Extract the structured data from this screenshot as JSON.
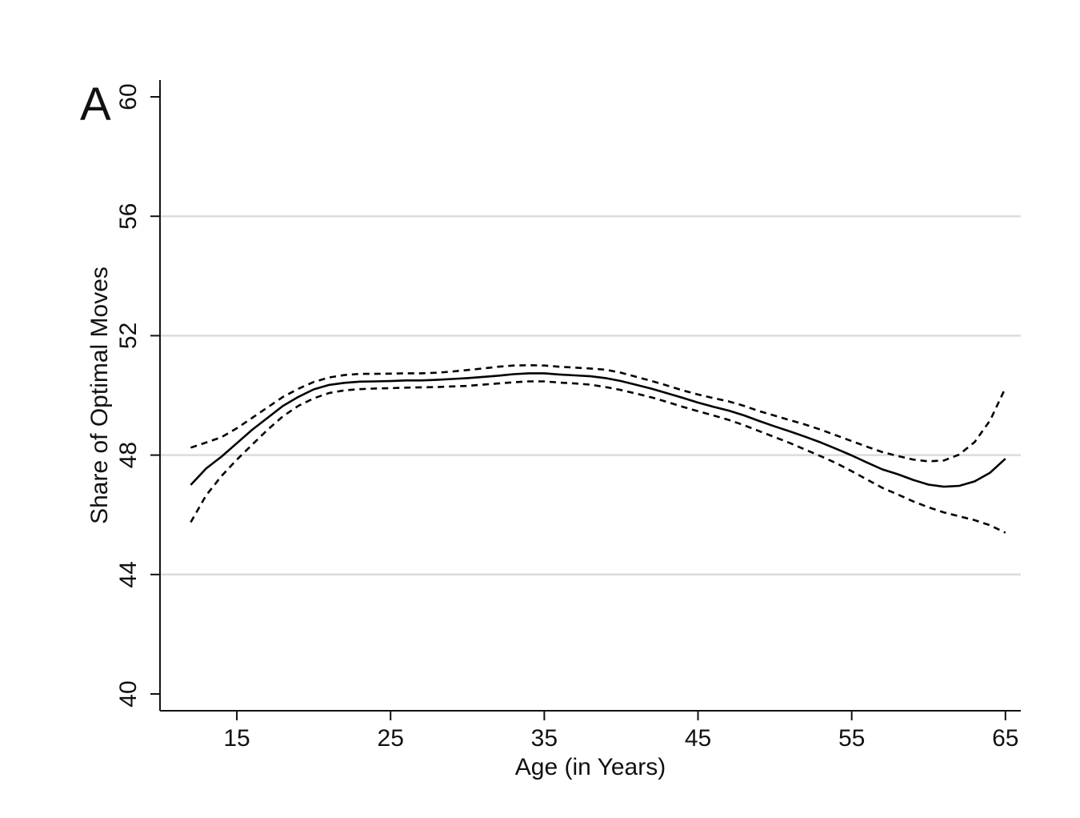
{
  "chart_data": {
    "type": "line",
    "panel_label": "A",
    "xlabel": "Age (in Years)",
    "ylabel": "Share of Optimal Moves",
    "xlim": [
      10,
      66
    ],
    "ylim": [
      40,
      60.5
    ],
    "xticks": [
      15,
      25,
      35,
      45,
      55,
      65
    ],
    "yticks": [
      40,
      44,
      48,
      52,
      56,
      60
    ],
    "grid": "horizontal",
    "x": [
      12,
      13,
      14,
      15,
      16,
      17,
      18,
      19,
      20,
      21,
      22,
      23,
      24,
      25,
      26,
      27,
      28,
      29,
      30,
      31,
      32,
      33,
      34,
      35,
      36,
      37,
      38,
      39,
      40,
      41,
      42,
      43,
      44,
      45,
      46,
      47,
      48,
      49,
      50,
      51,
      52,
      53,
      54,
      55,
      56,
      57,
      58,
      59,
      60,
      61,
      62,
      63,
      64,
      65
    ],
    "series": [
      {
        "style": "solid",
        "values": [
          47.0,
          47.55,
          47.95,
          48.4,
          48.85,
          49.25,
          49.65,
          49.95,
          50.2,
          50.35,
          50.42,
          50.46,
          50.47,
          50.48,
          50.5,
          50.5,
          50.52,
          50.55,
          50.58,
          50.62,
          50.66,
          50.71,
          50.74,
          50.74,
          50.7,
          50.67,
          50.64,
          50.58,
          50.48,
          50.35,
          50.22,
          50.07,
          49.92,
          49.76,
          49.62,
          49.49,
          49.33,
          49.14,
          48.96,
          48.79,
          48.61,
          48.42,
          48.21,
          47.99,
          47.75,
          47.52,
          47.36,
          47.17,
          47.01,
          46.94,
          46.97,
          47.12,
          47.41,
          47.88
        ]
      },
      {
        "style": "dashed",
        "values": [
          48.25,
          48.42,
          48.6,
          48.9,
          49.25,
          49.6,
          49.95,
          50.22,
          50.45,
          50.6,
          50.68,
          50.72,
          50.72,
          50.73,
          50.74,
          50.74,
          50.76,
          50.8,
          50.85,
          50.9,
          50.96,
          51.0,
          51.01,
          51.0,
          50.96,
          50.93,
          50.9,
          50.86,
          50.76,
          50.62,
          50.48,
          50.33,
          50.17,
          50.03,
          49.91,
          49.8,
          49.65,
          49.47,
          49.32,
          49.17,
          49.02,
          48.85,
          48.66,
          48.47,
          48.28,
          48.1,
          47.97,
          47.85,
          47.79,
          47.82,
          48.02,
          48.44,
          49.16,
          50.25
        ]
      },
      {
        "style": "dashed",
        "values": [
          45.75,
          46.65,
          47.3,
          47.85,
          48.35,
          48.85,
          49.3,
          49.65,
          49.9,
          50.08,
          50.17,
          50.21,
          50.23,
          50.24,
          50.26,
          50.27,
          50.28,
          50.3,
          50.32,
          50.36,
          50.4,
          50.44,
          50.47,
          50.47,
          50.43,
          50.4,
          50.36,
          50.28,
          50.18,
          50.06,
          49.93,
          49.78,
          49.62,
          49.47,
          49.33,
          49.18,
          49.0,
          48.8,
          48.6,
          48.4,
          48.18,
          47.96,
          47.73,
          47.46,
          47.18,
          46.9,
          46.68,
          46.45,
          46.25,
          46.08,
          45.95,
          45.82,
          45.65,
          45.4
        ]
      }
    ]
  }
}
